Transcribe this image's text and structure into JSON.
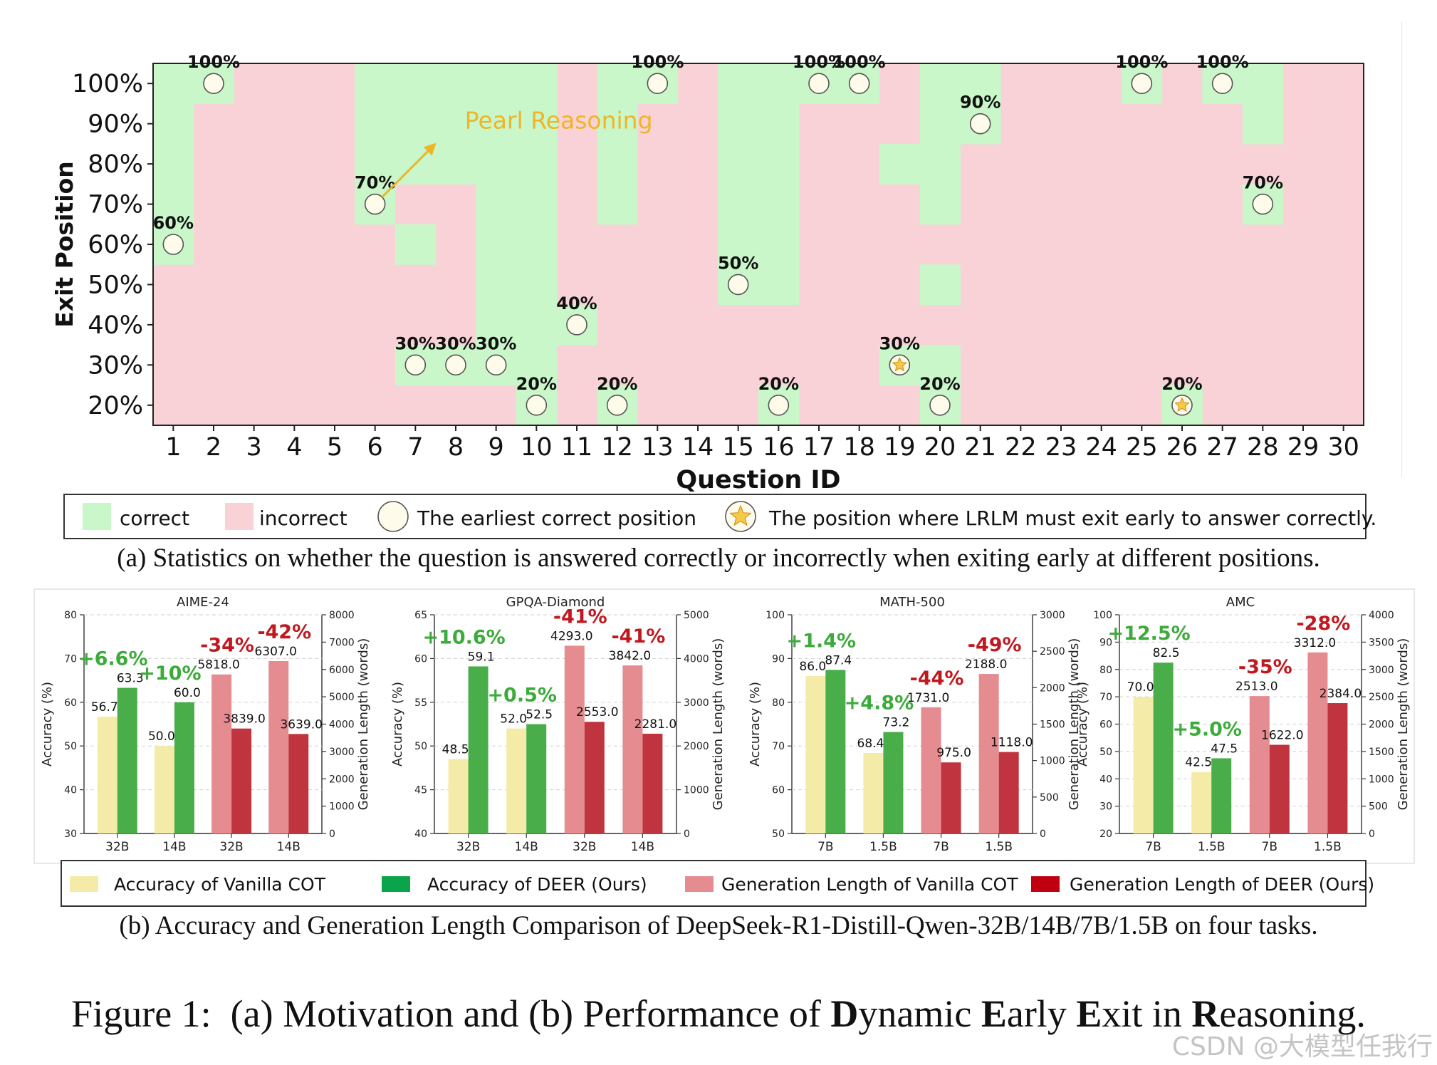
{
  "colors": {
    "correct": "#c9f7c9",
    "incorrect": "#f8d2d6",
    "annot_orange": "#f0b526",
    "gain": "#3dab3b",
    "loss": "#c1181f",
    "vanilla_acc": "#f4eba8",
    "deer_acc": "#49ad49",
    "vanilla_len": "#e58c91",
    "deer_len": "#c03440",
    "legend_deer_acc": "#0aa54a",
    "legend_deer_len": "#c00010"
  },
  "chart_data": [
    {
      "type": "heatmap",
      "id": "exit-position-grid",
      "title": "",
      "xlabel": "Question ID",
      "ylabel": "Exit Position",
      "x_categories": [
        "1",
        "2",
        "3",
        "4",
        "5",
        "6",
        "7",
        "8",
        "9",
        "10",
        "11",
        "12",
        "13",
        "14",
        "15",
        "16",
        "17",
        "18",
        "19",
        "20",
        "21",
        "22",
        "23",
        "24",
        "25",
        "26",
        "27",
        "28",
        "29",
        "30"
      ],
      "y_categories": [
        "20%",
        "30%",
        "40%",
        "50%",
        "60%",
        "70%",
        "80%",
        "90%",
        "100%"
      ],
      "cell_values": [
        "correct",
        "incorrect"
      ],
      "correct_ranges": [
        {
          "question": 1,
          "from": "60%",
          "to": "100%"
        },
        {
          "question": 2,
          "from": "100%",
          "to": "100%"
        },
        {
          "question": 6,
          "from": "70%",
          "to": "100%"
        },
        {
          "question": 7,
          "from": "30%",
          "to": "30%"
        },
        {
          "question": 7,
          "from": "60%",
          "to": "60%"
        },
        {
          "question": 7,
          "from": "80%",
          "to": "100%"
        },
        {
          "question": 8,
          "from": "30%",
          "to": "30%"
        },
        {
          "question": 8,
          "from": "80%",
          "to": "100%"
        },
        {
          "question": 9,
          "from": "30%",
          "to": "100%"
        },
        {
          "question": 10,
          "from": "20%",
          "to": "100%"
        },
        {
          "question": 11,
          "from": "40%",
          "to": "40%"
        },
        {
          "question": 12,
          "from": "20%",
          "to": "20%"
        },
        {
          "question": 12,
          "from": "70%",
          "to": "100%"
        },
        {
          "question": 13,
          "from": "100%",
          "to": "100%"
        },
        {
          "question": 15,
          "from": "50%",
          "to": "100%"
        },
        {
          "question": 16,
          "from": "20%",
          "to": "20%"
        },
        {
          "question": 16,
          "from": "50%",
          "to": "100%"
        },
        {
          "question": 17,
          "from": "100%",
          "to": "100%"
        },
        {
          "question": 18,
          "from": "100%",
          "to": "100%"
        },
        {
          "question": 19,
          "from": "30%",
          "to": "30%"
        },
        {
          "question": 19,
          "from": "80%",
          "to": "80%"
        },
        {
          "question": 20,
          "from": "20%",
          "to": "30%"
        },
        {
          "question": 20,
          "from": "50%",
          "to": "50%"
        },
        {
          "question": 20,
          "from": "70%",
          "to": "100%"
        },
        {
          "question": 21,
          "from": "90%",
          "to": "100%"
        },
        {
          "question": 25,
          "from": "100%",
          "to": "100%"
        },
        {
          "question": 26,
          "from": "20%",
          "to": "20%"
        },
        {
          "question": 27,
          "from": "100%",
          "to": "100%"
        },
        {
          "question": 28,
          "from": "70%",
          "to": "70%"
        },
        {
          "question": 28,
          "from": "90%",
          "to": "100%"
        }
      ],
      "earliest_correct": [
        {
          "question": 1,
          "position": "60%",
          "label": "60%",
          "marker": "circle"
        },
        {
          "question": 2,
          "position": "100%",
          "label": "100%",
          "marker": "circle"
        },
        {
          "question": 6,
          "position": "70%",
          "label": "70%",
          "marker": "circle"
        },
        {
          "question": 7,
          "position": "30%",
          "label": "30%",
          "marker": "circle"
        },
        {
          "question": 8,
          "position": "30%",
          "label": "30%",
          "marker": "circle"
        },
        {
          "question": 9,
          "position": "30%",
          "label": "30%",
          "marker": "circle"
        },
        {
          "question": 10,
          "position": "20%",
          "label": "20%",
          "marker": "circle"
        },
        {
          "question": 11,
          "position": "40%",
          "label": "40%",
          "marker": "circle"
        },
        {
          "question": 12,
          "position": "20%",
          "label": "20%",
          "marker": "circle"
        },
        {
          "question": 13,
          "position": "100%",
          "label": "100%",
          "marker": "circle"
        },
        {
          "question": 15,
          "position": "50%",
          "label": "50%",
          "marker": "circle"
        },
        {
          "question": 16,
          "position": "20%",
          "label": "20%",
          "marker": "circle"
        },
        {
          "question": 17,
          "position": "100%",
          "label": "100%",
          "marker": "circle"
        },
        {
          "question": 18,
          "position": "100%",
          "label": "100%",
          "marker": "circle"
        },
        {
          "question": 19,
          "position": "30%",
          "label": "30%",
          "marker": "star"
        },
        {
          "question": 20,
          "position": "20%",
          "label": "20%",
          "marker": "circle"
        },
        {
          "question": 21,
          "position": "90%",
          "label": "90%",
          "marker": "circle"
        },
        {
          "question": 25,
          "position": "100%",
          "label": "100%",
          "marker": "circle"
        },
        {
          "question": 26,
          "position": "20%",
          "label": "20%",
          "marker": "star"
        },
        {
          "question": 27,
          "position": "100%",
          "label": "100%",
          "marker": "circle"
        },
        {
          "question": 28,
          "position": "70%",
          "label": "70%",
          "marker": "circle"
        }
      ],
      "annotation": {
        "text": "Pearl Reasoning",
        "points_to_question": 6,
        "points_to_position": "70%"
      },
      "legend": {
        "correct": "correct",
        "incorrect": "incorrect",
        "circle": "The earliest correct position",
        "star": "The position where LRLM must exit early to answer correctly."
      }
    },
    {
      "type": "bar",
      "title": "AIME-24",
      "categories": [
        "32B",
        "14B",
        "32B",
        "14B"
      ],
      "left_axis": {
        "label": "Accuracy (%)",
        "ylim": [
          30,
          80
        ],
        "ticks": [
          30,
          40,
          50,
          60,
          70,
          80
        ]
      },
      "right_axis": {
        "label": "Generation Length (words)",
        "ylim": [
          0,
          8000
        ],
        "ticks": [
          0,
          1000,
          2000,
          3000,
          4000,
          5000,
          6000,
          7000,
          8000
        ]
      },
      "groups": [
        {
          "axis": "left",
          "vanilla": 56.7,
          "deer": 63.3,
          "vanilla_label": "56.7",
          "deer_label": "63.3",
          "change": "+6.6%"
        },
        {
          "axis": "left",
          "vanilla": 50.0,
          "deer": 60.0,
          "vanilla_label": "50.0",
          "deer_label": "60.0",
          "change": "+10%"
        },
        {
          "axis": "right",
          "vanilla": 5818.0,
          "deer": 3839.0,
          "vanilla_label": "5818.0",
          "deer_label": "3839.0",
          "change": "-34%"
        },
        {
          "axis": "right",
          "vanilla": 6307.0,
          "deer": 3639.0,
          "vanilla_label": "6307.0",
          "deer_label": "3639.0",
          "change": "-42%"
        }
      ]
    },
    {
      "type": "bar",
      "title": "GPQA-Diamond",
      "categories": [
        "32B",
        "14B",
        "32B",
        "14B"
      ],
      "left_axis": {
        "label": "Accuracy (%)",
        "ylim": [
          40,
          65
        ],
        "ticks": [
          40,
          45,
          50,
          55,
          60,
          65
        ]
      },
      "right_axis": {
        "label": "Generation Length (words)",
        "ylim": [
          0,
          5000
        ],
        "ticks": [
          0,
          1000,
          2000,
          3000,
          4000,
          5000
        ]
      },
      "groups": [
        {
          "axis": "left",
          "vanilla": 48.5,
          "deer": 59.1,
          "vanilla_label": "48.5",
          "deer_label": "59.1",
          "change": "+10.6%"
        },
        {
          "axis": "left",
          "vanilla": 52.0,
          "deer": 52.5,
          "vanilla_label": "52.0",
          "deer_label": "52.5",
          "change": "+0.5%"
        },
        {
          "axis": "right",
          "vanilla": 4293.0,
          "deer": 2553.0,
          "vanilla_label": "4293.0",
          "deer_label": "2553.0",
          "change": "-41%"
        },
        {
          "axis": "right",
          "vanilla": 3842.0,
          "deer": 2281.0,
          "vanilla_label": "3842.0",
          "deer_label": "2281.0",
          "change": "-41%"
        }
      ]
    },
    {
      "type": "bar",
      "title": "MATH-500",
      "categories": [
        "7B",
        "1.5B",
        "7B",
        "1.5B"
      ],
      "left_axis": {
        "label": "Accuracy (%)",
        "ylim": [
          50,
          100
        ],
        "ticks": [
          50,
          60,
          70,
          80,
          90,
          100
        ]
      },
      "right_axis": {
        "label": "Generation Length (words)",
        "ylim": [
          0,
          3000
        ],
        "ticks": [
          0,
          500,
          1000,
          1500,
          2000,
          2500,
          3000
        ]
      },
      "groups": [
        {
          "axis": "left",
          "vanilla": 86.0,
          "deer": 87.4,
          "vanilla_label": "86.0",
          "deer_label": "87.4",
          "change": "+1.4%"
        },
        {
          "axis": "left",
          "vanilla": 68.4,
          "deer": 73.2,
          "vanilla_label": "68.4",
          "deer_label": "73.2",
          "change": "+4.8%"
        },
        {
          "axis": "right",
          "vanilla": 1731.0,
          "deer": 975.0,
          "vanilla_label": "1731.0",
          "deer_label": "975.0",
          "change": "-44%"
        },
        {
          "axis": "right",
          "vanilla": 2188.0,
          "deer": 1118.0,
          "vanilla_label": "2188.0",
          "deer_label": "1118.0",
          "change": "-49%"
        }
      ]
    },
    {
      "type": "bar",
      "title": "AMC",
      "categories": [
        "7B",
        "1.5B",
        "7B",
        "1.5B"
      ],
      "left_axis": {
        "label": "Accuracy (%)",
        "ylim": [
          20,
          100
        ],
        "ticks": [
          20,
          30,
          40,
          50,
          60,
          70,
          80,
          90,
          100
        ]
      },
      "right_axis": {
        "label": "Generation Length (words)",
        "ylim": [
          0,
          4000
        ],
        "ticks": [
          0,
          500,
          1000,
          1500,
          2000,
          2500,
          3000,
          3500,
          4000
        ]
      },
      "groups": [
        {
          "axis": "left",
          "vanilla": 70.0,
          "deer": 82.5,
          "vanilla_label": "70.0",
          "deer_label": "82.5",
          "change": "+12.5%"
        },
        {
          "axis": "left",
          "vanilla": 42.5,
          "deer": 47.5,
          "vanilla_label": "42.5",
          "deer_label": "47.5",
          "change": "+5.0%"
        },
        {
          "axis": "right",
          "vanilla": 2513.0,
          "deer": 1622.0,
          "vanilla_label": "2513.0",
          "deer_label": "1622.0",
          "change": "-35%"
        },
        {
          "axis": "right",
          "vanilla": 3312.0,
          "deer": 2384.0,
          "vanilla_label": "3312.0",
          "deer_label": "2384.0",
          "change": "-28%"
        }
      ]
    }
  ],
  "bar_legend": {
    "vanilla_acc": "Accuracy of Vanilla COT",
    "deer_acc": "Accuracy of DEER (Ours)",
    "vanilla_len": "Generation Length of Vanilla COT",
    "deer_len": "Generation Length of DEER (Ours)"
  },
  "captions": {
    "a": "(a) Statistics on whether the question is answered correctly or incorrectly when exiting early at different positions.",
    "b": "(b) Accuracy and Generation Length Comparison of DeepSeek-R1-Distill-Qwen-32B/14B/7B/1.5B on four tasks.",
    "figure_prefix": "Figure 1:",
    "figure_text_1": "(a) Motivation and (b) Performance of ",
    "figure_bold_D": "D",
    "figure_text_2": "ynamic ",
    "figure_bold_E1": "E",
    "figure_text_3": "arly ",
    "figure_bold_E2": "E",
    "figure_text_4": "xit in ",
    "figure_bold_R": "R",
    "figure_text_5": "easoning."
  },
  "watermark": "CSDN @大模型任我行"
}
